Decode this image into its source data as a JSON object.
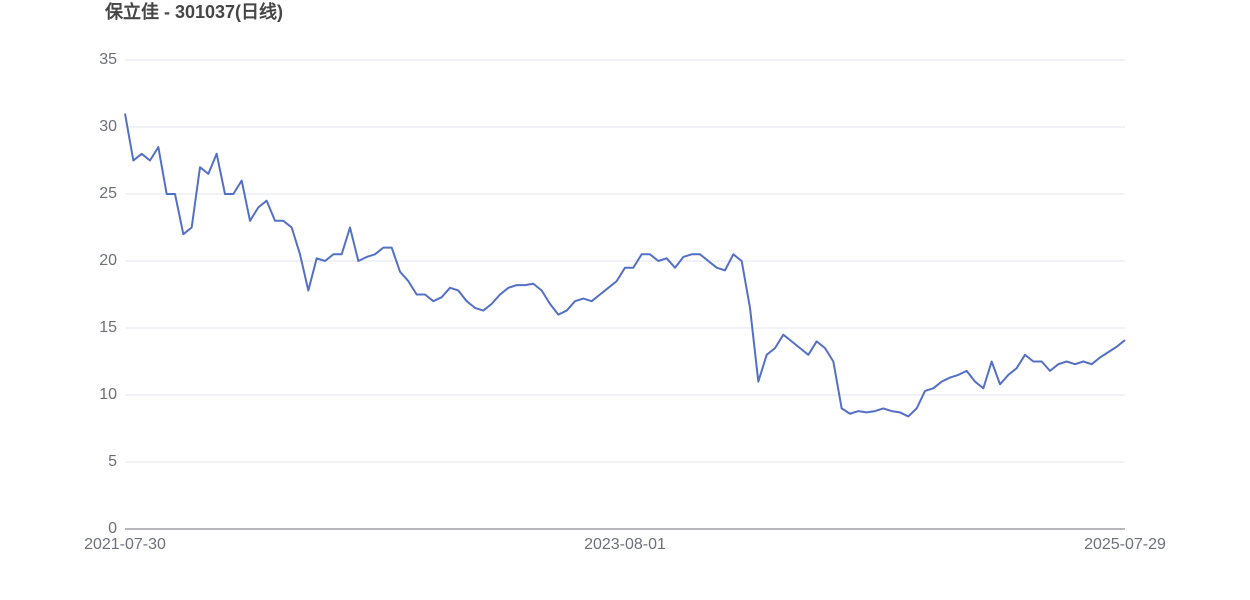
{
  "chart_data": {
    "type": "line",
    "title": "保立佳 - 301037(日线)",
    "categories": [
      "2021-07-30",
      null,
      null,
      null,
      null,
      null,
      null,
      null,
      null,
      null,
      null,
      null,
      null,
      null,
      null,
      null,
      null,
      null,
      null,
      null,
      null,
      null,
      null,
      null,
      null,
      null,
      null,
      null,
      null,
      null,
      null,
      null,
      null,
      null,
      null,
      null,
      null,
      null,
      null,
      null,
      null,
      null,
      null,
      null,
      null,
      null,
      null,
      null,
      null,
      null,
      null,
      null,
      null,
      null,
      null,
      null,
      null,
      null,
      null,
      null,
      "2023-08-01",
      null,
      null,
      null,
      null,
      null,
      null,
      null,
      null,
      null,
      null,
      null,
      null,
      null,
      null,
      null,
      null,
      null,
      null,
      null,
      null,
      null,
      null,
      null,
      null,
      null,
      null,
      null,
      null,
      null,
      null,
      null,
      null,
      null,
      null,
      null,
      null,
      null,
      null,
      null,
      null,
      null,
      null,
      null,
      null,
      null,
      null,
      null,
      null,
      null,
      null,
      null,
      null,
      null,
      null,
      null,
      null,
      null,
      null,
      null,
      "2025-07-29"
    ],
    "values": [
      31,
      27.5,
      28,
      27.5,
      28.5,
      25,
      25,
      22,
      22.5,
      27,
      26.5,
      28,
      25,
      25,
      26,
      23,
      24,
      24.5,
      23,
      23,
      22.5,
      20.5,
      17.8,
      20.2,
      20,
      20.5,
      20.5,
      22.5,
      20,
      20.3,
      20.5,
      21,
      21,
      19.2,
      18.5,
      17.5,
      17.5,
      17,
      17.3,
      18,
      17.8,
      17,
      16.5,
      16.3,
      16.8,
      17.5,
      18,
      18.2,
      18.2,
      18.3,
      17.8,
      16.8,
      16,
      16.3,
      17,
      17.2,
      17,
      17.5,
      18,
      18.5,
      19.5,
      19.5,
      20.5,
      20.5,
      20,
      20.2,
      19.5,
      20.3,
      20.5,
      20.5,
      20,
      19.5,
      19.3,
      20.5,
      20,
      16.5,
      11,
      13,
      13.5,
      14.5,
      14,
      13.5,
      13,
      14,
      13.5,
      12.5,
      9,
      8.6,
      8.8,
      8.7,
      8.8,
      9,
      8.8,
      8.7,
      8.4,
      9,
      10.3,
      10.5,
      11,
      11.3,
      11.5,
      11.8,
      11,
      10.5,
      12.5,
      10.8,
      11.5,
      12,
      13,
      12.5,
      12.5,
      11.8,
      12.3,
      12.5,
      12.3,
      12.5,
      12.3,
      12.8,
      13.2,
      13.6,
      14.1
    ],
    "color": "#5470c6",
    "ylim": [
      0,
      35
    ],
    "yticks": [
      0,
      5,
      10,
      15,
      20,
      25,
      30,
      35
    ],
    "grid": true
  }
}
